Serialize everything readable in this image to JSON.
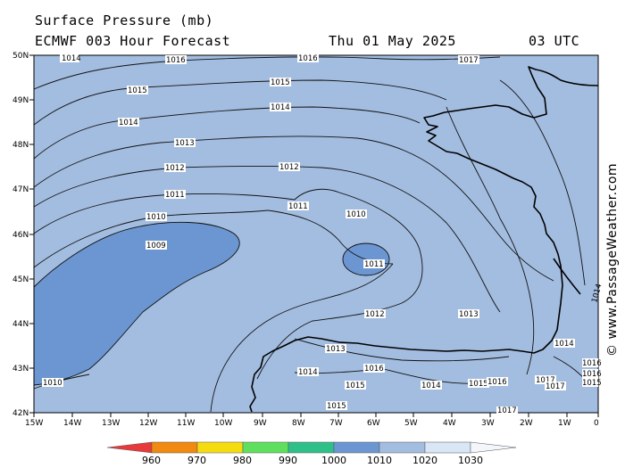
{
  "header": {
    "title": "Surface Pressure (mb)",
    "model": "ECMWF 003 Hour Forecast",
    "date": "Thu 01 May 2025",
    "time": "03 UTC"
  },
  "axes": {
    "latitudes": [
      "50N",
      "49N",
      "48N",
      "47N",
      "46N",
      "45N",
      "44N",
      "43N",
      "42N"
    ],
    "longitudes": [
      "15W",
      "14W",
      "13W",
      "12W",
      "11W",
      "10W",
      "9W",
      "8W",
      "7W",
      "6W",
      "5W",
      "4W",
      "3W",
      "2W",
      "1W",
      "0"
    ]
  },
  "isobar_labels": {
    "l1014a": "1014",
    "l1016a": "1016",
    "l1016b": "1016",
    "l1017a": "1017",
    "l1015a": "1015",
    "l1015b": "1015",
    "l1014b": "1014",
    "l1014c": "1014",
    "l1013a": "1013",
    "l1012a": "1012",
    "l1012b": "1012",
    "l1011a": "1011",
    "l1011b": "1011",
    "l1010a": "1010",
    "l1010b": "1010",
    "l1009": "1009",
    "l1011c": "1011",
    "l1012c": "1012",
    "l1013b": "1013",
    "l1013c": "1013",
    "l1014d": "1014",
    "l1016c": "1016",
    "l1015c": "1015",
    "l1015d": "1015",
    "l1014e": "1014",
    "l1015e": "1015",
    "l1016d": "1016",
    "l1017b": "1017",
    "l1017c": "1017",
    "l1014f": "1014",
    "l1016e": "1016",
    "l1016f": "1016",
    "l1015f": "1015",
    "l1017d": "1017",
    "l1010c": "1010",
    "l1014g": "1014"
  },
  "credit": "© www.PassageWeather.com",
  "colorbar": {
    "labels": [
      "960",
      "970",
      "980",
      "990",
      "1000",
      "1010",
      "1020",
      "1030"
    ],
    "colors": [
      "#e83a3a",
      "#f08a10",
      "#f5dc10",
      "#5ee05e",
      "#2fc08a",
      "#6b96d2",
      "#a3bde0",
      "#d9e6f5"
    ]
  },
  "fill_colors": {
    "sea_1010_1020": "#a3bde0",
    "low_below_1010": "#6b96d2"
  }
}
